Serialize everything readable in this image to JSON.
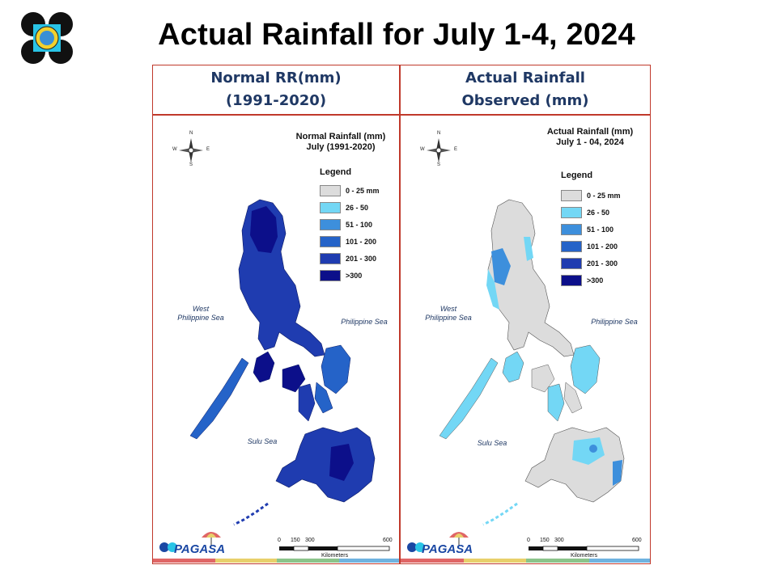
{
  "slide": {
    "title": "Actual Rainfall for July 1-4, 2024"
  },
  "columns": {
    "left": {
      "line1": "Normal RR(mm)",
      "line2": "(1991-2020)"
    },
    "right": {
      "line1": "Actual Rainfall",
      "line2": "Observed (mm)"
    }
  },
  "maps": {
    "left": {
      "title_line1": "Normal Rainfall (mm)",
      "title_line2": "July (1991-2020)",
      "legend_title": "Legend",
      "legend": [
        {
          "label": "0 - 25 mm",
          "color": "#dcdcdc"
        },
        {
          "label": "26 - 50",
          "color": "#73d7f5"
        },
        {
          "label": "51 - 100",
          "color": "#3d8fdc"
        },
        {
          "label": "101 - 200",
          "color": "#2563c8"
        },
        {
          "label": "201 - 300",
          "color": "#1f3cb0"
        },
        {
          "label": ">300",
          "color": "#0c0f8a"
        }
      ],
      "sea_west": "West\nPhilippine Sea",
      "sea_east": "Philippine Sea",
      "sea_south": "Sulu Sea",
      "compass": {
        "n": "N",
        "s": "S",
        "e": "E",
        "w": "W"
      },
      "scale_ticks": [
        "0",
        "150",
        "300",
        "600"
      ],
      "scale_unit": "Kilometers",
      "agency": "PAGASA"
    },
    "right": {
      "title_line1": "Actual Rainfall (mm)",
      "title_line2": "July 1 - 04, 2024",
      "legend_title": "Legend",
      "legend": [
        {
          "label": "0 - 25 mm",
          "color": "#dcdcdc"
        },
        {
          "label": "26 - 50",
          "color": "#73d7f5"
        },
        {
          "label": "51 - 100",
          "color": "#3d8fdc"
        },
        {
          "label": "101 - 200",
          "color": "#2563c8"
        },
        {
          "label": "201 - 300",
          "color": "#1f3cb0"
        },
        {
          "label": ">300",
          "color": "#0c0f8a"
        }
      ],
      "sea_west": "West\nPhilippine Sea",
      "sea_east": "Philippine Sea",
      "sea_south": "Sulu Sea",
      "compass": {
        "n": "N",
        "s": "S",
        "e": "E",
        "w": "W"
      },
      "scale_ticks": [
        "0",
        "150",
        "300",
        "600"
      ],
      "scale_unit": "Kilometers",
      "agency": "PAGASA"
    }
  },
  "colors": {
    "border": "#c0392b",
    "header_text": "#1f3864",
    "bottom_bar": [
      "#e06666",
      "#e8d06b",
      "#8bc48a",
      "#6fb3e0"
    ]
  }
}
